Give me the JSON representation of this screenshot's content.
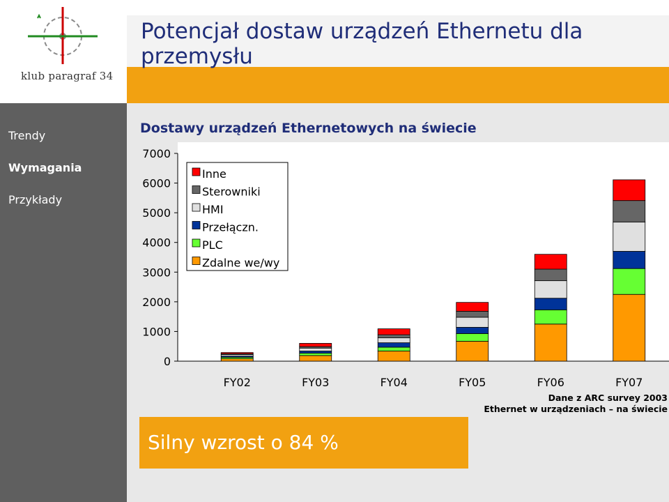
{
  "logo": {
    "caption": "klub paragraf 34",
    "icon": "gear-icon"
  },
  "slide": {
    "title": "Potencjał dostaw urządzeń Ethernetu dla przemysłu"
  },
  "nav": {
    "items": [
      {
        "label": "Trendy",
        "active": false
      },
      {
        "label": "Wymagania",
        "active": true
      },
      {
        "label": "Przykłady",
        "active": false
      }
    ]
  },
  "colors": {
    "panel": "#5f5f5f",
    "accent": "#f2a111",
    "title": "#1f2d78"
  },
  "callout": {
    "text": "Silny wzrost o 84 %"
  },
  "chart_data": {
    "type": "bar",
    "stacked": true,
    "title": "Dostawy urządzeń Ethernetowych  na świecie",
    "categories": [
      "FY02",
      "FY03",
      "FY04",
      "FY05",
      "FY06",
      "FY07"
    ],
    "ylim": [
      0,
      7000
    ],
    "yticks": [
      0,
      1000,
      2000,
      3000,
      4000,
      5000,
      6000,
      7000
    ],
    "grid": false,
    "legend_position": "top-left",
    "series": [
      {
        "name": "Zdalne we/wy",
        "color": "#ff9900",
        "values": [
          80,
          190,
          340,
          670,
          1250,
          2250
        ]
      },
      {
        "name": "PLC",
        "color": "#66ff33",
        "values": [
          50,
          80,
          130,
          260,
          480,
          870
        ]
      },
      {
        "name": "Przełączn.",
        "color": "#003399",
        "values": [
          40,
          70,
          150,
          210,
          390,
          580
        ]
      },
      {
        "name": "HMI",
        "color": "#e0e0e0",
        "values": [
          50,
          100,
          170,
          340,
          590,
          990
        ]
      },
      {
        "name": "Sterowniki",
        "color": "#666666",
        "values": [
          30,
          50,
          100,
          200,
          390,
          720
        ]
      },
      {
        "name": "Inne",
        "color": "#ff0000",
        "values": [
          40,
          110,
          200,
          300,
          500,
          700
        ]
      }
    ],
    "source_notes": [
      "Dane z ARC survey 2003",
      "Ethernet w urządzeniach – na świecie"
    ]
  }
}
